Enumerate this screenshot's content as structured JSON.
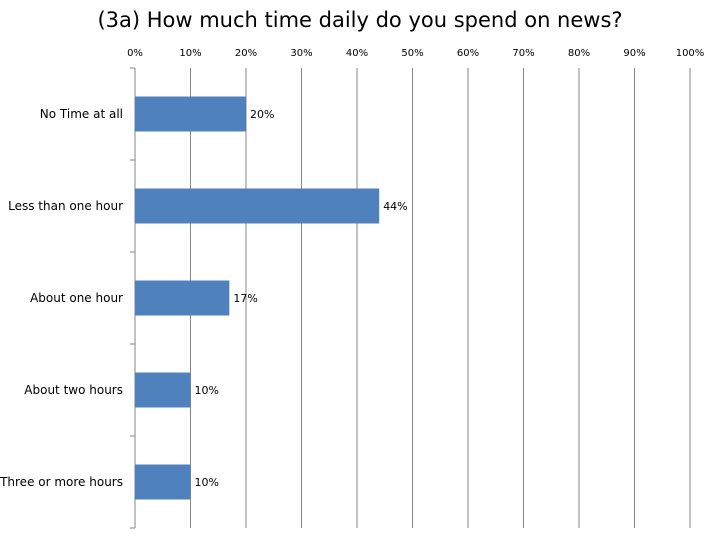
{
  "chart_data": {
    "type": "bar",
    "orientation": "horizontal",
    "title": "(3a) How much time daily do you spend on news?",
    "categories": [
      "No Time at all",
      "Less than one hour",
      "About one hour",
      "About two hours",
      "Three or more hours"
    ],
    "values": [
      20,
      44,
      17,
      10,
      10
    ],
    "value_labels": [
      "20%",
      "44%",
      "17%",
      "10%",
      "10%"
    ],
    "xlim": [
      0,
      100
    ],
    "x_ticks": [
      0,
      10,
      20,
      30,
      40,
      50,
      60,
      70,
      80,
      90,
      100
    ],
    "x_tick_labels": [
      "0%",
      "10%",
      "20%",
      "30%",
      "40%",
      "50%",
      "60%",
      "70%",
      "80%",
      "90%",
      "100%"
    ],
    "x_axis_position": "top",
    "grid": true,
    "legend": "none",
    "bar_color": "#4F81BD",
    "grid_color": "#868686"
  }
}
